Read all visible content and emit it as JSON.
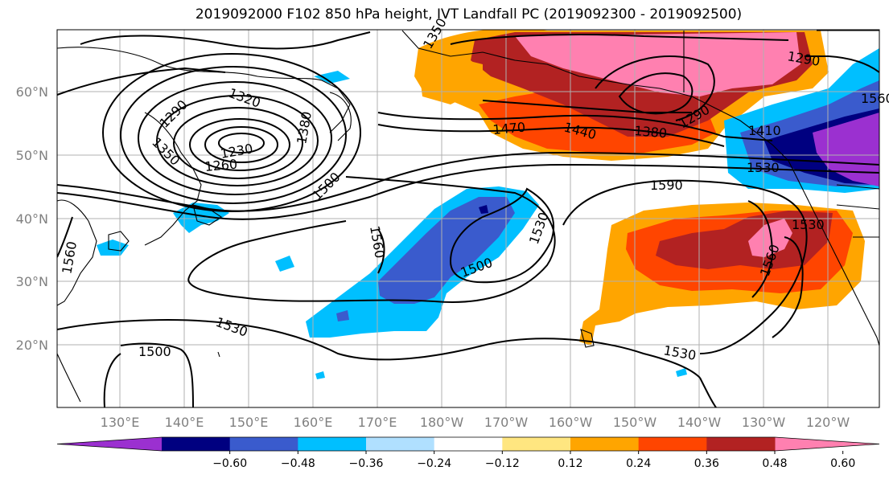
{
  "title": "2019092000 F102 850 hPa height, IVT Landfall PC (2019092300 - 2019092500)",
  "lat_ticks": [
    "60°N",
    "50°N",
    "40°N",
    "30°N",
    "20°N"
  ],
  "lon_ticks": [
    "130°E",
    "140°E",
    "150°E",
    "160°E",
    "170°E",
    "180°W",
    "170°W",
    "160°W",
    "150°W",
    "140°W",
    "130°W",
    "120°W"
  ],
  "contour_labels": [
    "1350",
    "1320",
    "1290",
    "1380",
    "1350",
    "1260",
    "1230",
    "1500",
    "1470",
    "1440",
    "1380",
    "1290",
    "1410",
    "1530",
    "1590",
    "1560",
    "1530",
    "1500",
    "1560",
    "1530",
    "1560",
    "1530",
    "1500",
    "1530",
    "1290",
    "1560"
  ],
  "colorbar": {
    "colors": [
      "#9b30d0",
      "#000080",
      "#3a5bcd",
      "#00bfff",
      "#b0e0ff",
      "#ffffff",
      "#ffe680",
      "#ffa500",
      "#ff4500",
      "#b22222",
      "#ff80b0"
    ],
    "labels": [
      "−0.60",
      "−0.48",
      "−0.36",
      "−0.24",
      "−0.12",
      "0.12",
      "0.24",
      "0.36",
      "0.48",
      "0.60"
    ]
  },
  "colors": {
    "grid": "#b0b0b0",
    "coast": "#000000",
    "contour": "#000000"
  }
}
